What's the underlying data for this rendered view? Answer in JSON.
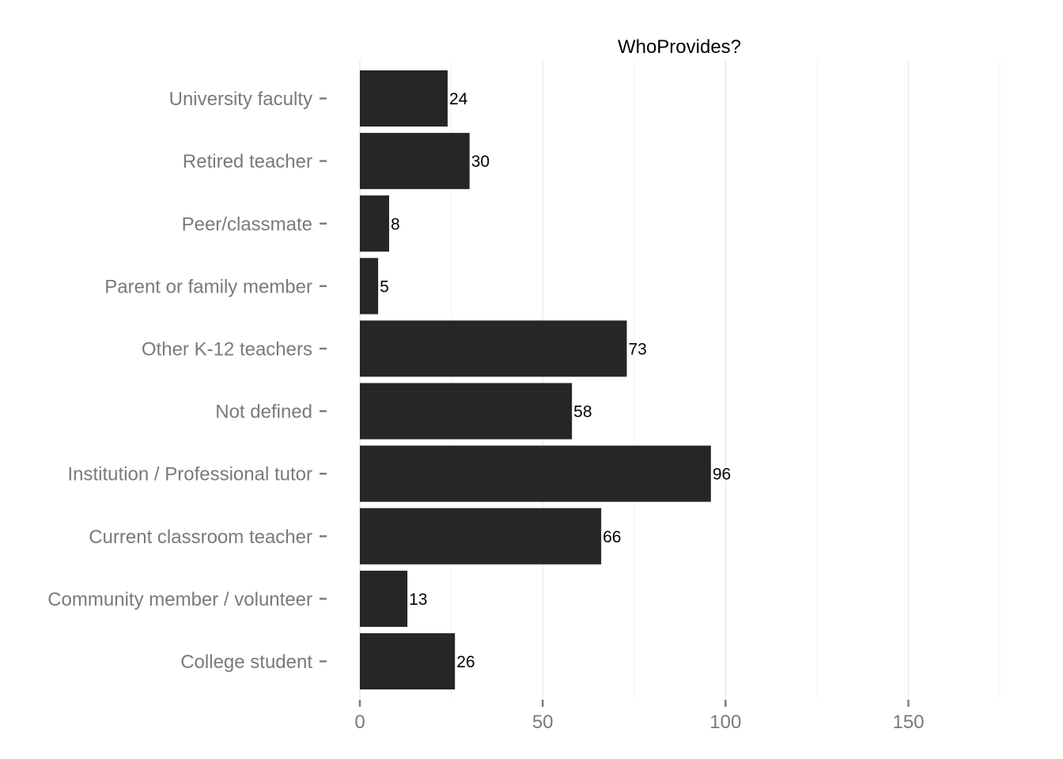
{
  "chart_data": {
    "type": "bar",
    "orientation": "horizontal",
    "title": "WhoProvides?",
    "xlabel": "",
    "ylabel": "",
    "categories": [
      "College student",
      "Community member / volunteer",
      "Current classroom teacher",
      "Institution / Professional tutor",
      "Not defined",
      "Other K-12 teachers",
      "Parent or family member",
      "Peer/classmate",
      "Retired teacher",
      "University faculty"
    ],
    "values": [
      26,
      13,
      66,
      96,
      58,
      73,
      5,
      8,
      30,
      24
    ],
    "xlim": [
      0,
      175
    ],
    "x_ticks": [
      0,
      50,
      100,
      150
    ],
    "data_labels": true,
    "grid": true,
    "legend": "none",
    "colors": {
      "bar": "#262626",
      "axis_text": "#7a7a7a",
      "title_text": "#000000",
      "data_label_text": "#000000",
      "grid": "#ececec",
      "background": "#ffffff"
    }
  }
}
